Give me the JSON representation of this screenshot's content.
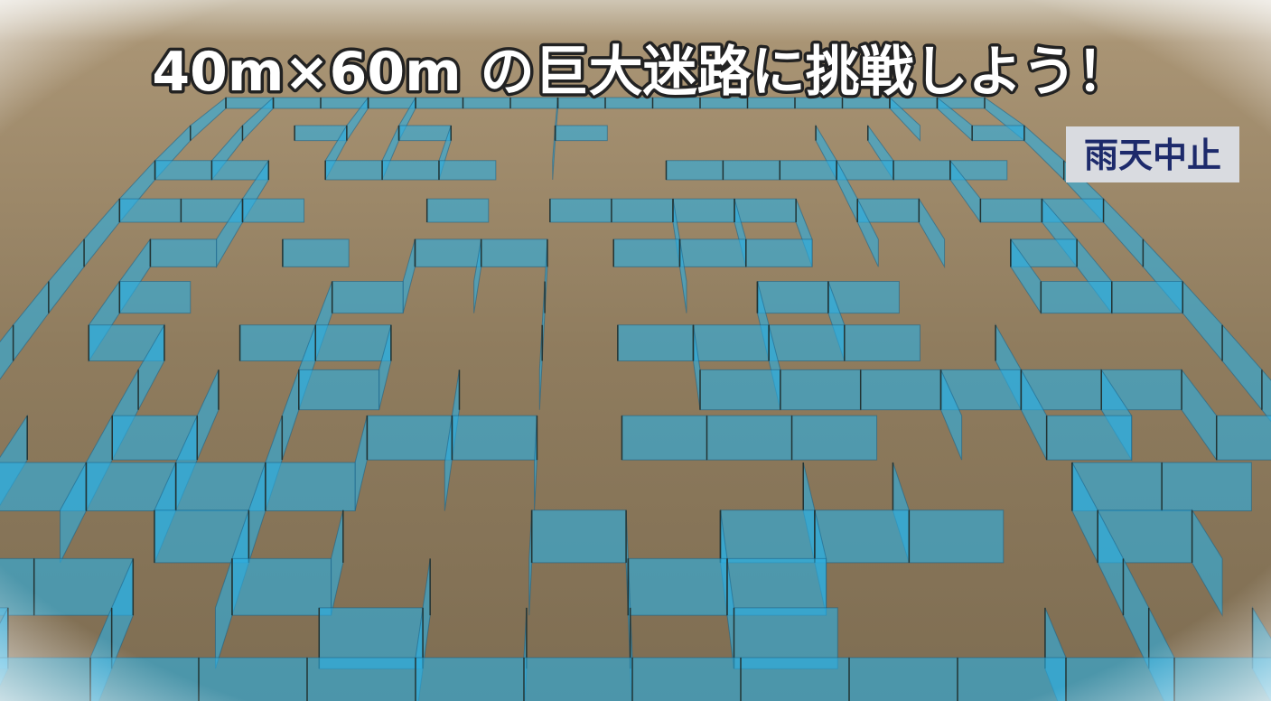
{
  "title": "40m×60m の巨大迷路に挑戦しよう！",
  "badge": "雨天中止"
}
